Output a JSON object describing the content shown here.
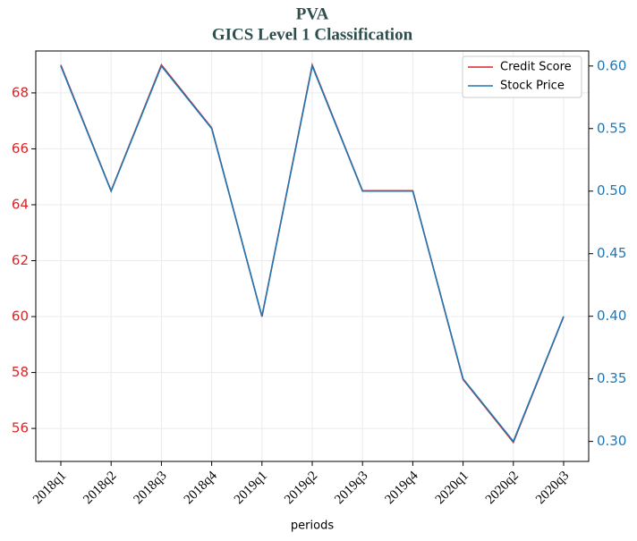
{
  "chart_data": {
    "type": "line",
    "title": "PVA",
    "subtitle": "GICS Level 1 Classification",
    "x_label": "periods",
    "categories": [
      "2018q1",
      "2018q2",
      "2018q3",
      "2018q4",
      "2019q1",
      "2019q2",
      "2019q3",
      "2019q4",
      "2020q1",
      "2020q2",
      "2020q3"
    ],
    "series": [
      {
        "name": "Credit Score",
        "color": "#d62728",
        "values": [
          69,
          64.5,
          69,
          66.75,
          60,
          69,
          64.5,
          64.5,
          57.75,
          55.5,
          60
        ]
      },
      {
        "name": "Stock Price",
        "color": "#1f77b4",
        "axis": "y2",
        "values": [
          0.6,
          0.5,
          0.6,
          0.55,
          0.4,
          0.6,
          0.5,
          0.5,
          0.35,
          0.3,
          0.4
        ]
      }
    ],
    "ylim": [
      54.82,
      69.5
    ],
    "yticks": [
      56,
      58,
      60,
      62,
      64,
      66,
      68
    ],
    "y2lim": [
      0.284,
      0.612
    ],
    "y2ticks": [
      {
        "value": 0.3,
        "label": "0.30"
      },
      {
        "value": 0.35,
        "label": "0.35"
      },
      {
        "value": 0.4,
        "label": "0.40"
      },
      {
        "value": 0.45,
        "label": "0.45"
      },
      {
        "value": 0.5,
        "label": "0.50"
      },
      {
        "value": 0.55,
        "label": "0.55"
      },
      {
        "value": 0.6,
        "label": "0.60"
      }
    ],
    "grid": true,
    "legend": "upper right"
  }
}
